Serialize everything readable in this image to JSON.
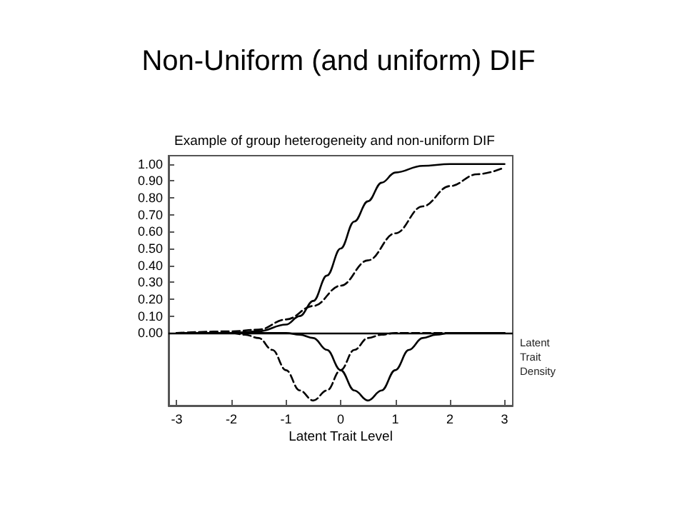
{
  "chart_data": {
    "type": "line",
    "title": "Non-Uniform (and uniform) DIF",
    "subtitle": "Example of group heterogeneity and non-uniform DIF",
    "xlabel": "Latent Trait Level",
    "xlim": [
      -3.15,
      3.15
    ],
    "xticks": [
      -3,
      -2,
      -1,
      0,
      1,
      2,
      3
    ],
    "ylim": [
      -0.43,
      1.05
    ],
    "yticks": [
      {
        "value": 0,
        "label": "0.00"
      },
      {
        "value": 0.1,
        "label": "0.10"
      },
      {
        "value": 0.2,
        "label": "0.20"
      },
      {
        "value": 0.3,
        "label": "0.30"
      },
      {
        "value": 0.4,
        "label": "0.40"
      },
      {
        "value": 0.5,
        "label": "0.50"
      },
      {
        "value": 0.6,
        "label": "0.60"
      },
      {
        "value": 0.7,
        "label": "0.70"
      },
      {
        "value": 0.8,
        "label": "0.80"
      },
      {
        "value": 0.9,
        "label": "0.90"
      },
      {
        "value": 1,
        "label": "1.00"
      }
    ],
    "grid": false,
    "marker": "none",
    "ref_lines": [
      {
        "axis": "y",
        "value": 0,
        "label": "Latent Trait Density",
        "color": "#000000"
      }
    ],
    "series": [
      {
        "color": "#000000",
        "line_style": "solid",
        "x": [
          -3,
          -2,
          -1.5,
          -1,
          -0.75,
          -0.5,
          -0.25,
          0,
          0.25,
          0.5,
          0.75,
          1,
          1.5,
          2,
          3
        ],
        "values": [
          0,
          0,
          0.01,
          0.05,
          0.1,
          0.19,
          0.34,
          0.5,
          0.66,
          0.78,
          0.89,
          0.95,
          0.99,
          1,
          1
        ]
      },
      {
        "color": "#000000",
        "line_style": "dashed",
        "x": [
          -3,
          -2,
          -1.5,
          -1,
          -0.5,
          0,
          0.5,
          1,
          1.5,
          2,
          2.5,
          3
        ],
        "values": [
          0,
          0.01,
          0.02,
          0.08,
          0.16,
          0.28,
          0.43,
          0.59,
          0.75,
          0.87,
          0.94,
          0.98
        ]
      },
      {
        "color": "#000000",
        "line_style": "solid",
        "x": [
          -3,
          -1,
          -0.75,
          -0.5,
          -0.25,
          0,
          0.25,
          0.5,
          0.75,
          1,
          1.25,
          1.5,
          1.75,
          2,
          3
        ],
        "values": [
          0,
          0,
          -0.01,
          -0.03,
          -0.1,
          -0.22,
          -0.34,
          -0.4,
          -0.34,
          -0.22,
          -0.1,
          -0.03,
          -0.01,
          0,
          0
        ]
      },
      {
        "color": "#000000",
        "line_style": "dashed",
        "x": [
          -3,
          -2,
          -1.75,
          -1.5,
          -1.25,
          -1,
          -0.75,
          -0.5,
          -0.25,
          0,
          0.25,
          0.5,
          0.75,
          1,
          3
        ],
        "values": [
          0,
          0,
          -0.01,
          -0.03,
          -0.1,
          -0.22,
          -0.34,
          -0.4,
          -0.34,
          -0.22,
          -0.1,
          -0.03,
          -0.01,
          0,
          0
        ]
      }
    ]
  }
}
